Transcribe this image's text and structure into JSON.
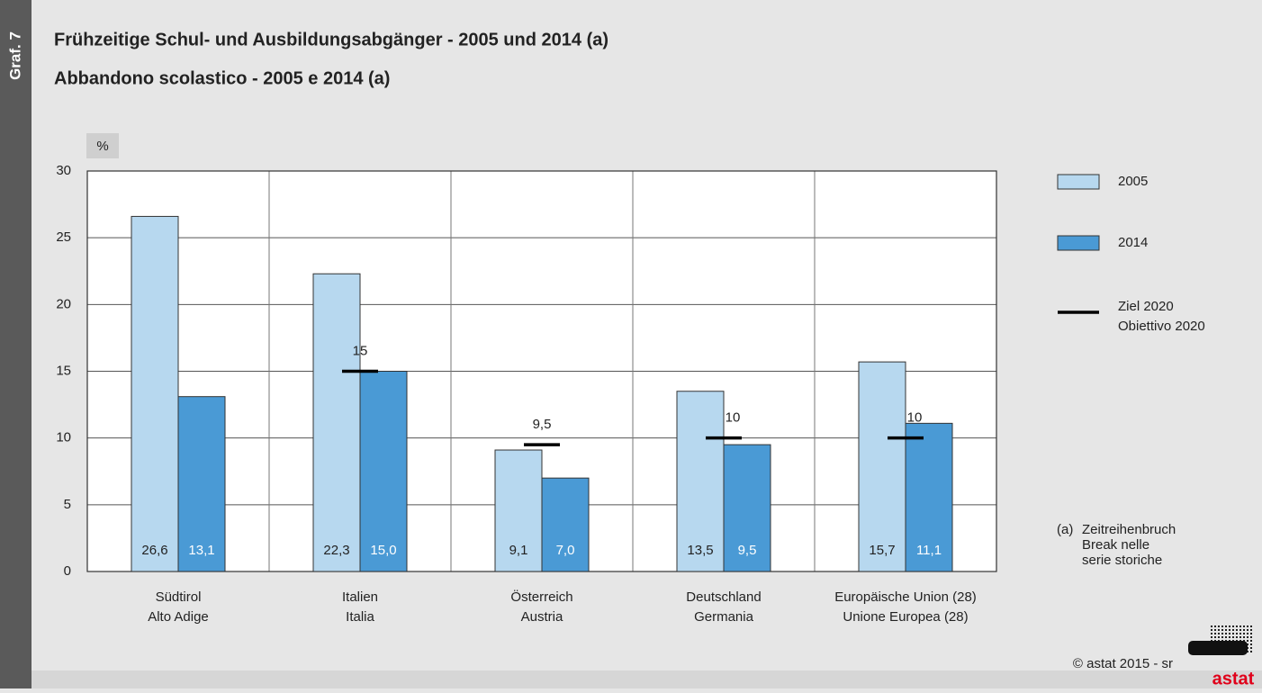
{
  "chart_data": {
    "type": "bar",
    "side_label": "Graf. 7",
    "title": "Frühzeitige Schul- und Ausbildungsabgänger - 2005 und 2014 (a)",
    "subtitle": "Abbandono scolastico - 2005 e 2014 (a)",
    "y_label": "%",
    "categories": [
      [
        "Südtirol",
        "Alto Adige"
      ],
      [
        "Italien",
        "Italia"
      ],
      [
        "Österreich",
        "Austria"
      ],
      [
        "Deutschland",
        "Germania"
      ],
      [
        "Europäische Union (28)",
        "Unione Europea (28)"
      ]
    ],
    "series": [
      {
        "name": "2005",
        "color": "#b7d8ef",
        "values": [
          26.6,
          22.3,
          9.1,
          13.5,
          15.7
        ],
        "value_labels": [
          "26,6",
          "22,3",
          "9,1",
          "13,5",
          "15,7"
        ]
      },
      {
        "name": "2014",
        "color": "#4a9ad5",
        "values": [
          13.1,
          15.0,
          7.0,
          9.5,
          11.1
        ],
        "value_labels": [
          "13,1",
          "15,0",
          "7,0",
          "9,5",
          "11,1"
        ]
      }
    ],
    "target": {
      "name": [
        "Ziel 2020",
        "Obiettivo 2020"
      ],
      "color": "#000000",
      "values": [
        null,
        15,
        9.5,
        10,
        10
      ],
      "value_labels": [
        null,
        "15",
        "9,5",
        "10",
        "10"
      ]
    },
    "ylim": [
      0,
      30
    ],
    "yticks": [
      0,
      5,
      10,
      15,
      20,
      25,
      30
    ],
    "grid": true,
    "note": [
      "(a)",
      "Zeitreihenbruch",
      "Break nelle",
      "serie storiche"
    ],
    "footer": "©  astat 2015 - sr",
    "logo": "astat"
  }
}
